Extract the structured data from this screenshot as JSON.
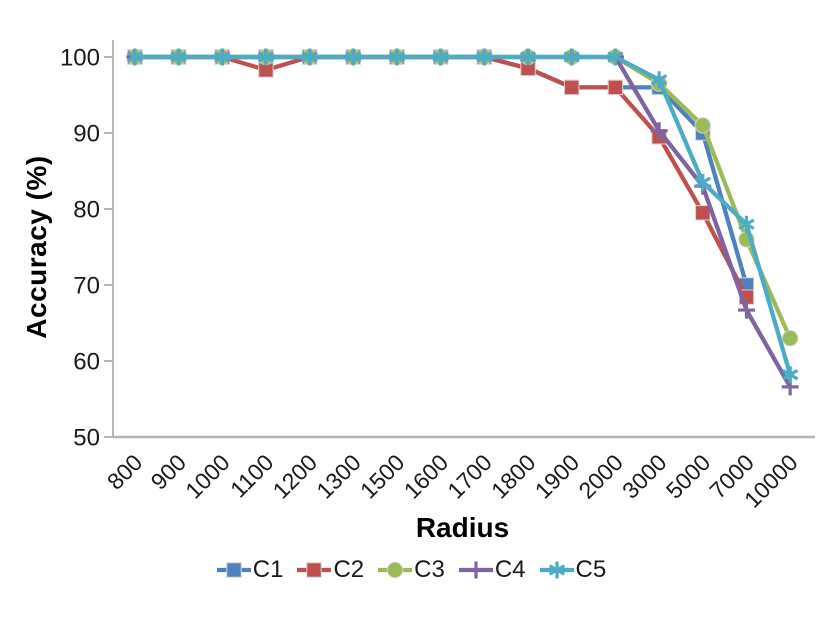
{
  "chart_data": {
    "type": "line",
    "title": "",
    "xlabel": "Radius",
    "ylabel": "Accuracy (%)",
    "categories": [
      "800",
      "900",
      "1000",
      "1100",
      "1200",
      "1300",
      "1500",
      "1600",
      "1700",
      "1800",
      "1900",
      "2000",
      "3000",
      "5000",
      "7000",
      "10000"
    ],
    "ylim": [
      50,
      100
    ],
    "yticks": [
      50,
      60,
      70,
      80,
      90,
      100
    ],
    "grid": false,
    "legend_position": "bottom",
    "axis_color": "#B5B5B5",
    "text_color": "#1a1a1a",
    "series": [
      {
        "name": "C1",
        "color": "#4F81BD",
        "marker": "square",
        "values": [
          100,
          100,
          100,
          100,
          100,
          100,
          100,
          100,
          100,
          98.5,
          96,
          96,
          96,
          90,
          70,
          null
        ]
      },
      {
        "name": "C2",
        "color": "#C0504D",
        "marker": "square",
        "values": [
          100,
          100,
          100,
          98.3,
          100,
          100,
          100,
          100,
          100,
          98.5,
          96,
          96,
          89.5,
          79.5,
          68.4,
          null
        ]
      },
      {
        "name": "C3",
        "color": "#9BBB59",
        "marker": "circle",
        "values": [
          100,
          100,
          100,
          100,
          100,
          100,
          100,
          100,
          100,
          100,
          100,
          100,
          96.5,
          91,
          76,
          63
        ]
      },
      {
        "name": "C4",
        "color": "#8064A2",
        "marker": "plus",
        "values": [
          100,
          100,
          100,
          100,
          100,
          100,
          100,
          100,
          100,
          100,
          100,
          100,
          90.3,
          83,
          66.7,
          56.6
        ]
      },
      {
        "name": "C5",
        "color": "#4BACC6",
        "marker": "asterisk",
        "values": [
          100,
          100,
          100,
          100,
          100,
          100,
          100,
          100,
          100,
          100,
          100,
          100,
          97,
          83.5,
          78,
          58.2
        ]
      }
    ]
  }
}
